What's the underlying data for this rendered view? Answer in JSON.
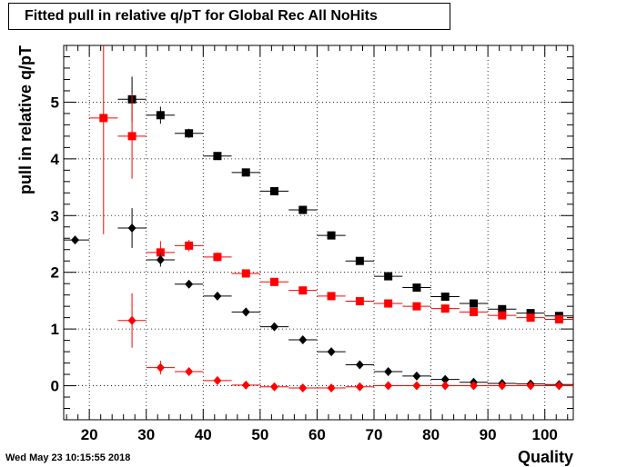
{
  "chart_data": {
    "type": "scatter",
    "title": "Fitted pull in relative q/pT for Global Rec All NoHits",
    "xlabel": "Quality",
    "ylabel": "pull in relative q/pT",
    "xlim": [
      15.5,
      105
    ],
    "ylim": [
      -0.6,
      6.0
    ],
    "xticks": [
      20,
      30,
      40,
      50,
      60,
      70,
      80,
      90,
      100
    ],
    "yticks": [
      0,
      1,
      2,
      3,
      4,
      5
    ],
    "grid": true,
    "series": [
      {
        "marker": "square",
        "color": "#000000",
        "points": [
          {
            "x": 27.5,
            "y": 5.05,
            "yerr": 0.4
          },
          {
            "x": 32.5,
            "y": 4.77,
            "yerr": 0.15
          },
          {
            "x": 37.5,
            "y": 4.45,
            "yerr": 0.08
          },
          {
            "x": 42.5,
            "y": 4.05,
            "yerr": 0.05
          },
          {
            "x": 47.5,
            "y": 3.76,
            "yerr": 0.04
          },
          {
            "x": 52.5,
            "y": 3.43,
            "yerr": 0.03
          },
          {
            "x": 57.5,
            "y": 3.1,
            "yerr": 0.03
          },
          {
            "x": 62.5,
            "y": 2.65,
            "yerr": 0.03
          },
          {
            "x": 67.5,
            "y": 2.2,
            "yerr": 0.03
          },
          {
            "x": 72.5,
            "y": 1.93,
            "yerr": 0.02
          },
          {
            "x": 77.5,
            "y": 1.73,
            "yerr": 0.02
          },
          {
            "x": 82.5,
            "y": 1.57,
            "yerr": 0.02
          },
          {
            "x": 87.5,
            "y": 1.45,
            "yerr": 0.02
          },
          {
            "x": 92.5,
            "y": 1.35,
            "yerr": 0.02
          },
          {
            "x": 97.5,
            "y": 1.28,
            "yerr": 0.02
          },
          {
            "x": 102.5,
            "y": 1.23,
            "yerr": 0.02
          }
        ]
      },
      {
        "marker": "square",
        "color": "#ff0000",
        "points": [
          {
            "x": 22.5,
            "y": 4.72,
            "yerr": 2.05
          },
          {
            "x": 27.5,
            "y": 4.4,
            "yerr": 0.75
          },
          {
            "x": 32.5,
            "y": 2.35,
            "yerr": 0.2
          },
          {
            "x": 37.5,
            "y": 2.47,
            "yerr": 0.1
          },
          {
            "x": 42.5,
            "y": 2.27,
            "yerr": 0.08
          },
          {
            "x": 47.5,
            "y": 1.98,
            "yerr": 0.04
          },
          {
            "x": 52.5,
            "y": 1.83,
            "yerr": 0.03
          },
          {
            "x": 57.5,
            "y": 1.68,
            "yerr": 0.03
          },
          {
            "x": 62.5,
            "y": 1.58,
            "yerr": 0.03
          },
          {
            "x": 67.5,
            "y": 1.49,
            "yerr": 0.02
          },
          {
            "x": 72.5,
            "y": 1.45,
            "yerr": 0.02
          },
          {
            "x": 77.5,
            "y": 1.4,
            "yerr": 0.02
          },
          {
            "x": 82.5,
            "y": 1.36,
            "yerr": 0.02
          },
          {
            "x": 87.5,
            "y": 1.3,
            "yerr": 0.02
          },
          {
            "x": 92.5,
            "y": 1.24,
            "yerr": 0.02
          },
          {
            "x": 97.5,
            "y": 1.2,
            "yerr": 0.02
          },
          {
            "x": 102.5,
            "y": 1.17,
            "yerr": 0.02
          }
        ]
      },
      {
        "marker": "diamond",
        "color": "#000000",
        "points": [
          {
            "x": 17.5,
            "y": 2.57,
            "yerr": 0.0
          },
          {
            "x": 27.5,
            "y": 2.78,
            "yerr": 0.35
          },
          {
            "x": 32.5,
            "y": 2.22,
            "yerr": 0.12
          },
          {
            "x": 37.5,
            "y": 1.79,
            "yerr": 0.06
          },
          {
            "x": 42.5,
            "y": 1.58,
            "yerr": 0.04
          },
          {
            "x": 47.5,
            "y": 1.3,
            "yerr": 0.03
          },
          {
            "x": 52.5,
            "y": 1.04,
            "yerr": 0.03
          },
          {
            "x": 57.5,
            "y": 0.81,
            "yerr": 0.02
          },
          {
            "x": 62.5,
            "y": 0.6,
            "yerr": 0.02
          },
          {
            "x": 67.5,
            "y": 0.37,
            "yerr": 0.02
          },
          {
            "x": 72.5,
            "y": 0.25,
            "yerr": 0.01
          },
          {
            "x": 77.5,
            "y": 0.17,
            "yerr": 0.01
          },
          {
            "x": 82.5,
            "y": 0.11,
            "yerr": 0.01
          },
          {
            "x": 87.5,
            "y": 0.06,
            "yerr": 0.01
          },
          {
            "x": 92.5,
            "y": 0.04,
            "yerr": 0.01
          },
          {
            "x": 97.5,
            "y": 0.03,
            "yerr": 0.01
          },
          {
            "x": 102.5,
            "y": 0.02,
            "yerr": 0.01
          }
        ]
      },
      {
        "marker": "diamond",
        "color": "#ff0000",
        "points": [
          {
            "x": 27.5,
            "y": 1.15,
            "yerr": 0.48
          },
          {
            "x": 32.5,
            "y": 0.32,
            "yerr": 0.12
          },
          {
            "x": 37.5,
            "y": 0.25,
            "yerr": 0.05
          },
          {
            "x": 42.5,
            "y": 0.09,
            "yerr": 0.03
          },
          {
            "x": 47.5,
            "y": 0.01,
            "yerr": 0.02
          },
          {
            "x": 52.5,
            "y": -0.02,
            "yerr": 0.02
          },
          {
            "x": 57.5,
            "y": -0.04,
            "yerr": 0.02
          },
          {
            "x": 62.5,
            "y": -0.04,
            "yerr": 0.02
          },
          {
            "x": 67.5,
            "y": -0.02,
            "yerr": 0.01
          },
          {
            "x": 72.5,
            "y": 0.0,
            "yerr": 0.01
          },
          {
            "x": 77.5,
            "y": 0.0,
            "yerr": 0.01
          },
          {
            "x": 82.5,
            "y": 0.0,
            "yerr": 0.01
          },
          {
            "x": 87.5,
            "y": 0.0,
            "yerr": 0.01
          },
          {
            "x": 92.5,
            "y": 0.0,
            "yerr": 0.01
          },
          {
            "x": 97.5,
            "y": 0.0,
            "yerr": 0.01
          },
          {
            "x": 102.5,
            "y": 0.0,
            "yerr": 0.01
          }
        ]
      }
    ]
  },
  "footer": {
    "timestamp": "Wed May 23 10:15:55 2018"
  }
}
